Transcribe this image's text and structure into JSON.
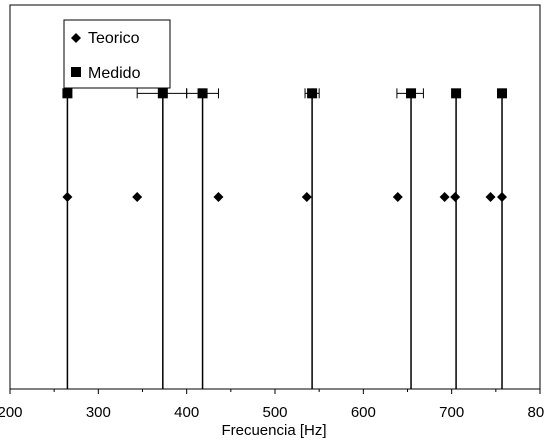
{
  "chart_data": {
    "type": "scatter",
    "title": "",
    "xlabel": "Frecuencia [Hz]",
    "ylabel": "",
    "xlim": [
      200,
      800
    ],
    "xticks": [
      200,
      300,
      400,
      500,
      600,
      700,
      800
    ],
    "ylim": [
      0,
      1
    ],
    "grid": false,
    "legend_position": "top-left",
    "series": [
      {
        "name": "Teorico",
        "marker": "diamond",
        "y": 0.5,
        "x": [
          265,
          344,
          436,
          536,
          639,
          692,
          704,
          744,
          757
        ]
      },
      {
        "name": "Medido",
        "marker": "square",
        "y": 0.77,
        "x": [
          265,
          373,
          418,
          542,
          654,
          705,
          757
        ],
        "error_low": [
          265,
          344,
          400,
          534,
          638,
          705,
          757
        ],
        "error_high": [
          265,
          400,
          436,
          550,
          668,
          705,
          757
        ]
      }
    ],
    "vertical_lines": [
      265,
      373,
      418,
      542,
      654,
      705,
      757
    ]
  }
}
